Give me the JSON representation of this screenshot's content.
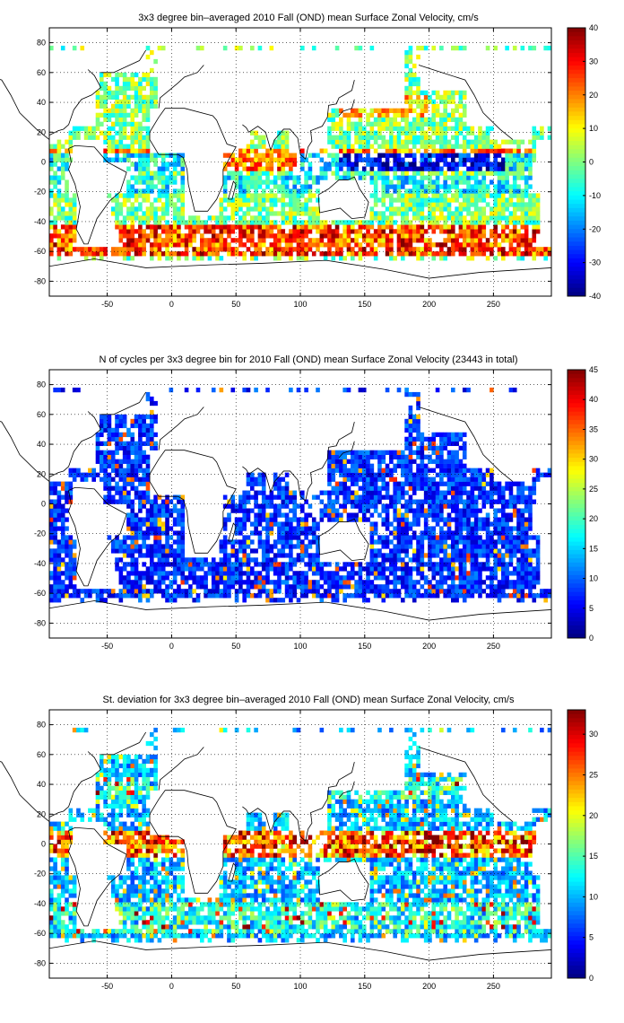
{
  "chart_data": [
    {
      "type": "heatmap",
      "title": "3x3 degree bin–averaged 2010 Fall (OND) mean Surface Zonal Velocity, cm/s",
      "xlabel": "",
      "ylabel": "",
      "xlim": [
        -95,
        295
      ],
      "ylim": [
        -90,
        90
      ],
      "xticks": [
        -50,
        0,
        50,
        100,
        150,
        200,
        250
      ],
      "yticks": [
        80,
        60,
        40,
        20,
        0,
        -20,
        -40,
        -60,
        -80
      ],
      "grid": true,
      "bin_size_deg": 3,
      "colorbar": {
        "min": -40,
        "max": 40,
        "ticks": [
          40,
          30,
          20,
          10,
          0,
          -10,
          -20,
          -30,
          -40
        ],
        "colormap": "jet"
      },
      "field": "zonal_velocity"
    },
    {
      "type": "heatmap",
      "title": "N of cycles per 3x3 degree bin for 2010 Fall (OND) mean Surface Zonal Velocity (23443 in total)",
      "xlabel": "",
      "ylabel": "",
      "xlim": [
        -95,
        295
      ],
      "ylim": [
        -90,
        90
      ],
      "xticks": [
        -50,
        0,
        50,
        100,
        150,
        200,
        250
      ],
      "yticks": [
        80,
        60,
        40,
        20,
        0,
        -20,
        -40,
        -60,
        -80
      ],
      "grid": true,
      "bin_size_deg": 3,
      "colorbar": {
        "min": 0,
        "max": 45,
        "ticks": [
          45,
          40,
          35,
          30,
          25,
          20,
          15,
          10,
          5,
          0
        ],
        "colormap": "jet"
      },
      "field": "cycle_count"
    },
    {
      "type": "heatmap",
      "title": "St. deviation for 3x3 degree bin–averaged 2010 Fall (OND) mean Surface Zonal Velocity, cm/s",
      "xlabel": "",
      "ylabel": "",
      "xlim": [
        -95,
        295
      ],
      "ylim": [
        -90,
        90
      ],
      "xticks": [
        -50,
        0,
        50,
        100,
        150,
        200,
        250
      ],
      "yticks": [
        80,
        60,
        40,
        20,
        0,
        -20,
        -40,
        -60,
        -80
      ],
      "grid": true,
      "bin_size_deg": 3,
      "colorbar": {
        "min": 0,
        "max": 33,
        "ticks": [
          30,
          25,
          20,
          15,
          10,
          5,
          0
        ],
        "colormap": "jet"
      },
      "field": "std_dev"
    }
  ]
}
